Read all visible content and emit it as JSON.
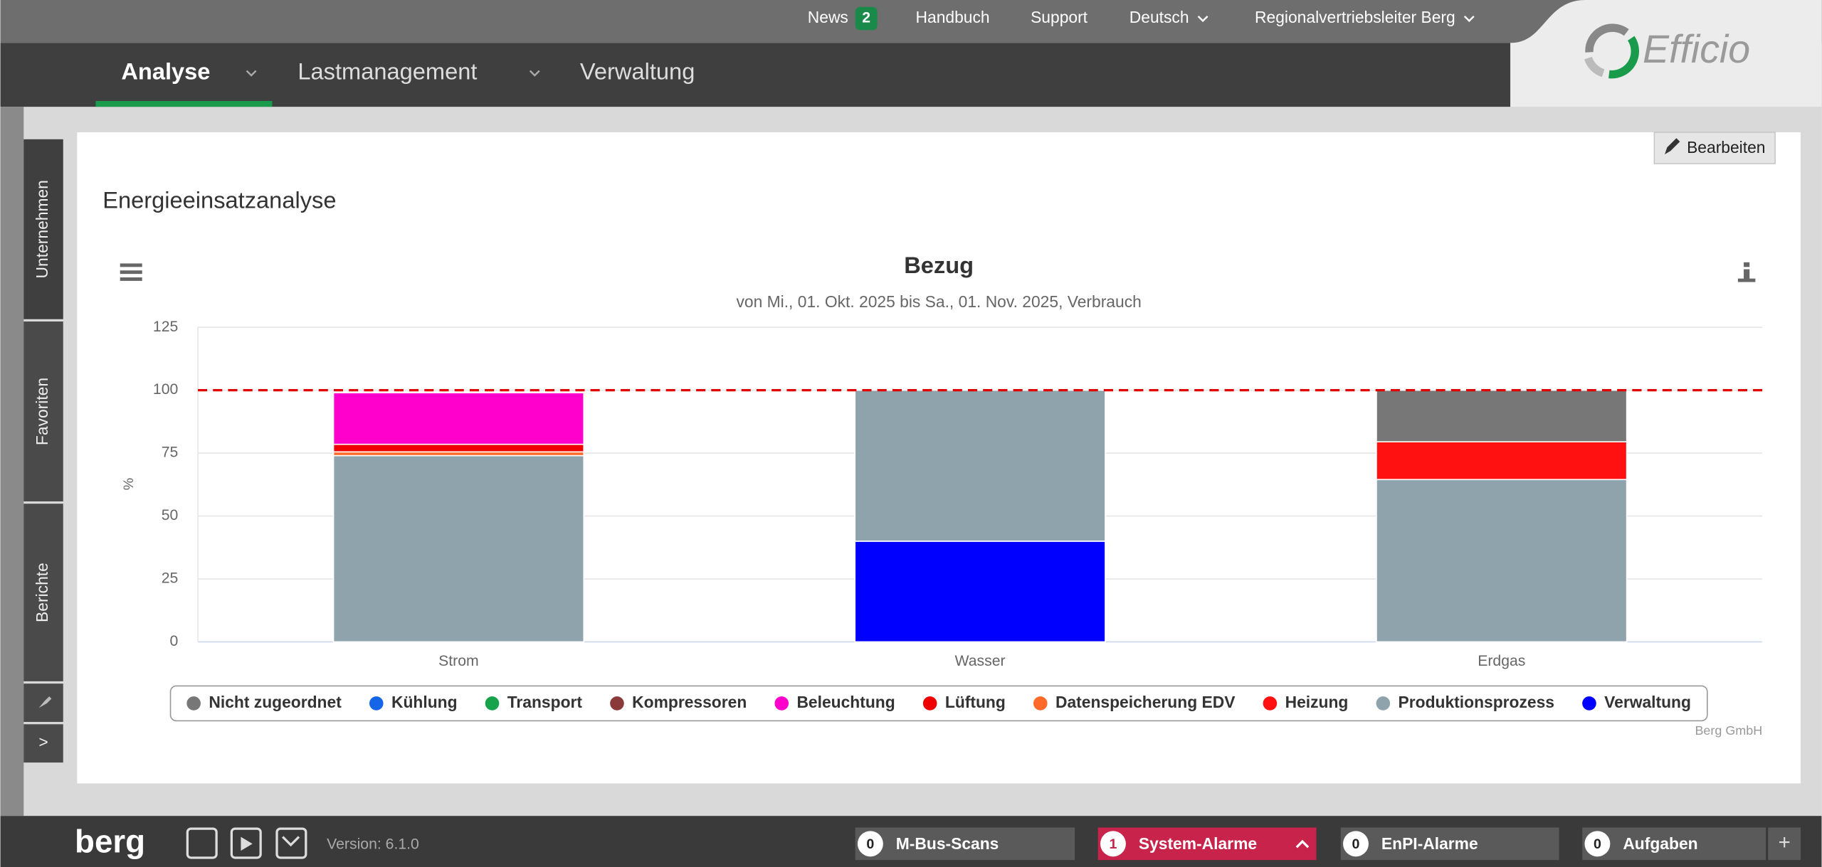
{
  "top_nav": {
    "news": "News",
    "news_count": 2,
    "links": [
      "Handbuch",
      "Support",
      "Deutsch",
      "Regionalvertriebsleiter Berg"
    ],
    "logo": "Efficio"
  },
  "main_nav": {
    "tabs": [
      "Analyse",
      "Lastmanagement",
      "Verwaltung"
    ]
  },
  "side_tabs": [
    "Unternehmen",
    "Favoriten",
    "Berichte",
    ">"
  ],
  "widget": {
    "title": "Energieeinsatzanalyse",
    "edit_button": "Bearbeiten"
  },
  "chart_data": {
    "type": "stacked_bar",
    "title": "Bezug",
    "subtitle": "von Mi., 01. Okt. 2025 bis Sa., 01. Nov. 2025, Verbrauch",
    "y_label": "%",
    "credits": "Berg GmbH",
    "categories": [
      "Strom",
      "Wasser",
      "Erdgas"
    ],
    "series": [
      {
        "name": "Nicht zugeordnet",
        "color": "#777777",
        "values": [
          0,
          0,
          20.5
        ]
      },
      {
        "name": "Kühlung",
        "color": "#1565e8",
        "values": [
          0,
          0,
          0
        ]
      },
      {
        "name": "Transport",
        "color": "#16a34a",
        "values": [
          0,
          0,
          0
        ]
      },
      {
        "name": "Kompressoren",
        "color": "#8b3a3a",
        "values": [
          0,
          0,
          0
        ]
      },
      {
        "name": "Beleuchtung",
        "color": "#ff00cc",
        "values": [
          20.5,
          0,
          0
        ]
      },
      {
        "name": "Lüftung",
        "color": "#ee0000",
        "values": [
          3,
          0,
          0
        ]
      },
      {
        "name": "Datenspeicherung EDV",
        "color": "#ff6a2a",
        "values": [
          1.5,
          0,
          0
        ]
      },
      {
        "name": "Heizung",
        "color": "#ff1111",
        "values": [
          0,
          0,
          15
        ]
      },
      {
        "name": "Produktionsprozess",
        "color": "#8fa3ad",
        "values": [
          74,
          60,
          64.5
        ]
      },
      {
        "name": "Verwaltung",
        "color": "#0000ff",
        "values": [
          0,
          40,
          0
        ]
      }
    ],
    "ylim": [
      0,
      125
    ],
    "yticks": [
      0,
      25,
      50,
      75,
      100,
      125
    ],
    "grid": true,
    "plot_lines": [
      {
        "value": 100,
        "color": "#e00000",
        "dash": "dashed"
      }
    ]
  },
  "footer": {
    "brand": "berg",
    "version": "Version: 6.1.0",
    "status": [
      {
        "count": 0,
        "label": "M-Bus-Scans"
      },
      {
        "count": 1,
        "label": "System-Alarme"
      },
      {
        "count": 0,
        "label": "EnPI-Alarme"
      },
      {
        "count": 0,
        "label": "Aufgaben"
      }
    ],
    "add": "+"
  }
}
